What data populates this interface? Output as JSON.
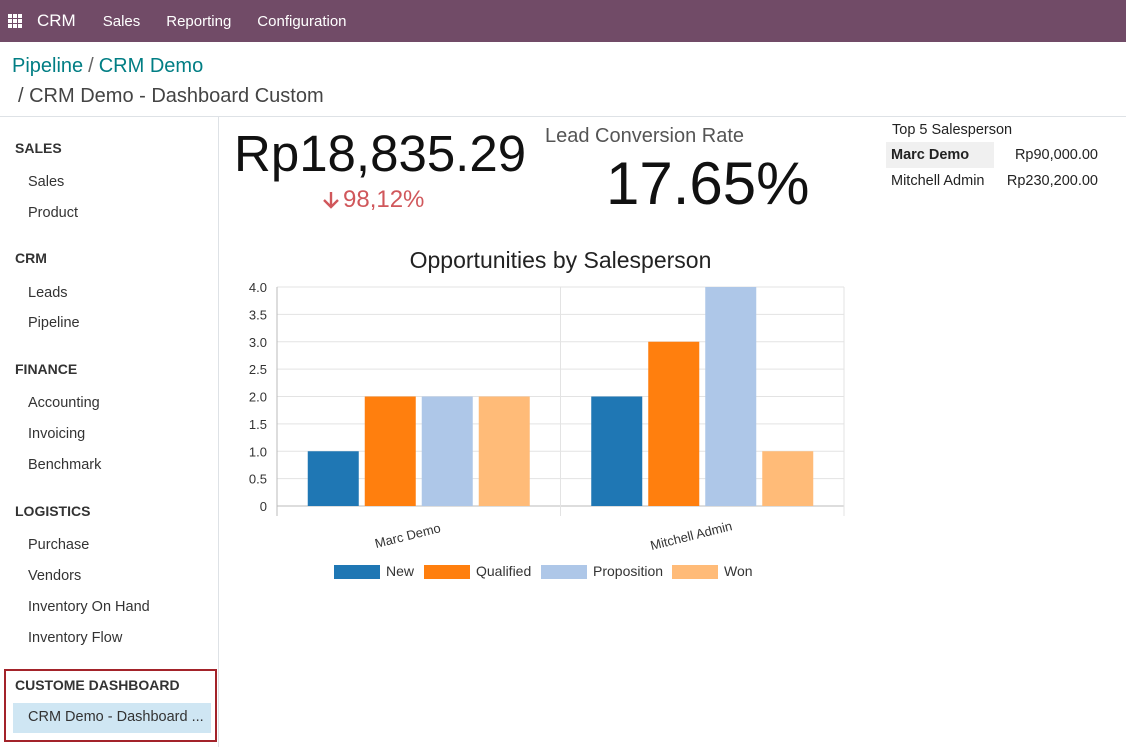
{
  "topbar": {
    "brand": "CRM",
    "menu": [
      "Sales",
      "Reporting",
      "Configuration"
    ]
  },
  "breadcrumb": {
    "parent": "Pipeline",
    "mid": "CRM Demo",
    "current": "/ CRM Demo - Dashboard Custom"
  },
  "sidebar": {
    "sections": [
      {
        "title": "SALES",
        "items": [
          "Sales",
          "Product"
        ]
      },
      {
        "title": "CRM",
        "items": [
          "Leads",
          "Pipeline"
        ]
      },
      {
        "title": "FINANCE",
        "items": [
          "Accounting",
          "Invoicing",
          "Benchmark"
        ]
      },
      {
        "title": "LOGISTICS",
        "items": [
          "Purchase",
          "Vendors",
          "Inventory On Hand",
          "Inventory Flow"
        ]
      },
      {
        "title": "CUSTOME DASHBOARD",
        "items": [
          "CRM Demo - Dashboard ..."
        ]
      }
    ]
  },
  "kpi_revenue": {
    "value": "Rp18,835.29",
    "delta": "98,12%",
    "delta_color": "#d0575b"
  },
  "kpi_conversion": {
    "label": "Lead Conversion Rate",
    "value": "17.65%"
  },
  "top5": {
    "title": "Top 5 Salesperson",
    "rows": [
      {
        "name": "Marc Demo",
        "amount": "Rp90,000.00"
      },
      {
        "name": "Mitchell Admin",
        "amount": "Rp230,200.00"
      }
    ]
  },
  "colors": {
    "topbar": "#714B67",
    "link": "#017e84",
    "active_bg": "#cfe6f3"
  },
  "chart_data": {
    "type": "bar",
    "title": "Opportunities by Salesperson",
    "categories": [
      "Marc Demo",
      "Mitchell Admin"
    ],
    "series": [
      {
        "name": "New",
        "color": "#1f77b4",
        "values": [
          1,
          2
        ]
      },
      {
        "name": "Qualified",
        "color": "#ff7f0e",
        "values": [
          2,
          3
        ]
      },
      {
        "name": "Proposition",
        "color": "#aec7e8",
        "values": [
          2,
          4
        ]
      },
      {
        "name": "Won",
        "color": "#ffbb78",
        "values": [
          2,
          1
        ]
      }
    ],
    "ylim": [
      0,
      4
    ],
    "yticks": [
      "0",
      "0.5",
      "1.0",
      "1.5",
      "2.0",
      "2.5",
      "3.0",
      "3.5",
      "4.0"
    ],
    "legend": "bottom",
    "grid": true
  }
}
